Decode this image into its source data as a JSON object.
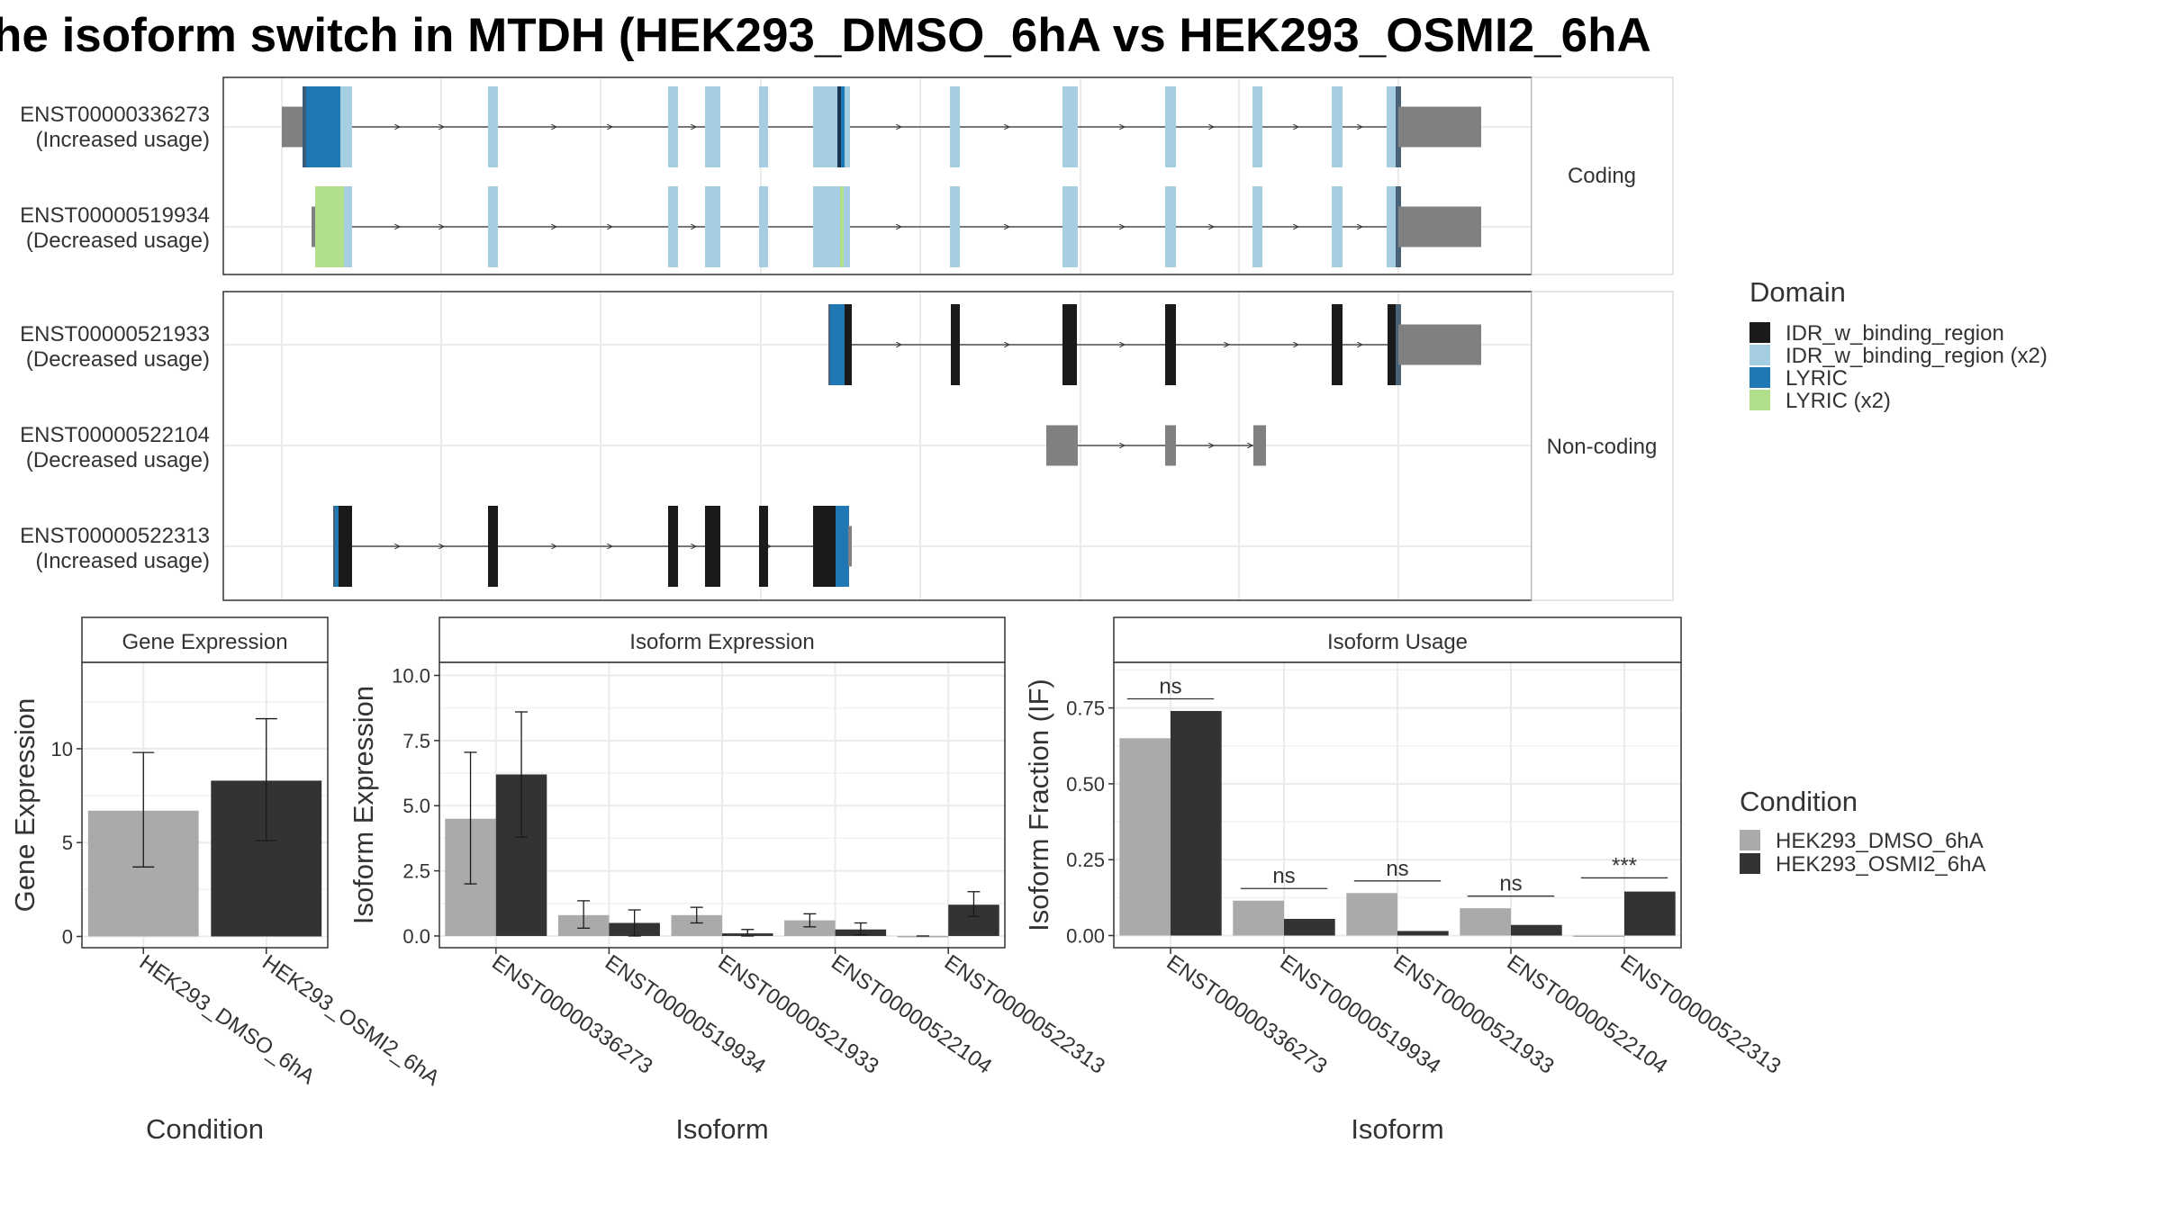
{
  "title": "he isoform switch in MTDH (HEK293_DMSO_6hA vs HEK293_OSMI2_6hA",
  "colors": {
    "IDR_w_binding_region": "#1a1a1a",
    "IDR_w_binding_region (x2)": "#a6cee3",
    "LYRIC": "#1f78b4",
    "LYRIC (x2)": "#b2df8a",
    "utr": "#808080",
    "HEK293_DMSO_6hA": "#aaaaaa",
    "HEK293_OSMI2_6hA": "#333333"
  },
  "structure": {
    "panels": [
      {
        "label": "Coding",
        "transcripts": [
          {
            "id": "ENST00000336273",
            "usage": "(Increased usage)"
          },
          {
            "id": "ENST00000519934",
            "usage": "(Decreased usage)"
          }
        ]
      },
      {
        "label": "Non-coding",
        "transcripts": [
          {
            "id": "ENST00000521933",
            "usage": "(Decreased usage)"
          },
          {
            "id": "ENST00000522104",
            "usage": "(Decreased usage)"
          },
          {
            "id": "ENST00000522313",
            "usage": "(Increased usage)"
          }
        ]
      }
    ],
    "domain_legend": {
      "title": "Domain",
      "items": [
        "IDR_w_binding_region",
        "IDR_w_binding_region (x2)",
        "LYRIC",
        "LYRIC (x2)"
      ]
    }
  },
  "condition_legend": {
    "title": "Condition",
    "items": [
      "HEK293_DMSO_6hA",
      "HEK293_OSMI2_6hA"
    ]
  },
  "chart_data": [
    {
      "type": "bar",
      "title": "Gene Expression",
      "xlabel": "Condition",
      "ylabel": "Gene Expression",
      "categories": [
        "HEK293_DMSO_6hA",
        "HEK293_OSMI2_6hA"
      ],
      "values": [
        6.7,
        8.3
      ],
      "error_low": [
        3.7,
        5.1
      ],
      "error_high": [
        9.8,
        11.6
      ],
      "ylim": [
        -0.6,
        14.6
      ],
      "yticks": [
        0,
        5,
        10
      ],
      "ytick_labels": [
        "0",
        "5",
        "10"
      ]
    },
    {
      "type": "bar",
      "title": "Isoform Expression",
      "xlabel": "Isoform",
      "ylabel": "Isoform Expression",
      "categories": [
        "ENST00000336273",
        "ENST00000519934",
        "ENST00000521933",
        "ENST00000522104",
        "ENST00000522313"
      ],
      "series": [
        {
          "name": "HEK293_DMSO_6hA",
          "values": [
            4.5,
            0.8,
            0.8,
            0.6,
            0.0
          ],
          "error_low": [
            2.0,
            0.3,
            0.5,
            0.35,
            0.0
          ],
          "error_high": [
            7.05,
            1.35,
            1.1,
            0.85,
            0.0
          ]
        },
        {
          "name": "HEK293_OSMI2_6hA",
          "values": [
            6.2,
            0.5,
            0.1,
            0.25,
            1.2
          ],
          "error_low": [
            3.8,
            0.0,
            0.0,
            0.05,
            0.75
          ],
          "error_high": [
            8.6,
            1.0,
            0.25,
            0.5,
            1.7
          ]
        }
      ],
      "ylim": [
        -0.45,
        10.5
      ],
      "yticks": [
        0,
        2.5,
        5,
        7.5,
        10
      ],
      "ytick_labels": [
        "0.0",
        "2.5",
        "5.0",
        "7.5",
        "10.0"
      ]
    },
    {
      "type": "bar",
      "title": "Isoform Usage",
      "xlabel": "Isoform",
      "ylabel": "Isoform Fraction (IF)",
      "categories": [
        "ENST00000336273",
        "ENST00000519934",
        "ENST00000521933",
        "ENST00000522104",
        "ENST00000522313"
      ],
      "series": [
        {
          "name": "HEK293_DMSO_6hA",
          "values": [
            0.65,
            0.115,
            0.14,
            0.09,
            0.0
          ]
        },
        {
          "name": "HEK293_OSMI2_6hA",
          "values": [
            0.74,
            0.055,
            0.015,
            0.035,
            0.145
          ]
        }
      ],
      "significance": [
        "ns",
        "ns",
        "ns",
        "ns",
        "***"
      ],
      "significance_y": [
        0.78,
        0.155,
        0.18,
        0.13,
        0.19
      ],
      "ylim": [
        -0.04,
        0.9
      ],
      "yticks": [
        0,
        0.25,
        0.5,
        0.75
      ],
      "ytick_labels": [
        "0.00",
        "0.25",
        "0.50",
        "0.75"
      ]
    }
  ]
}
